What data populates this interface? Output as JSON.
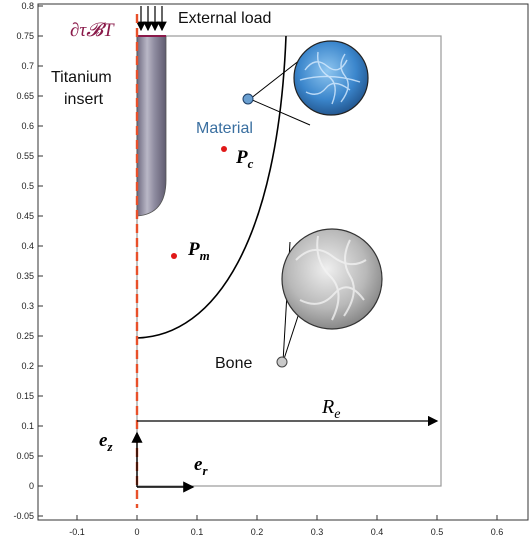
{
  "axes": {
    "x_ticks": [
      "-0.1",
      "0",
      "0.1",
      "0.2",
      "0.3",
      "0.4",
      "0.5",
      "0.6"
    ],
    "y_ticks": [
      "0.8",
      "0.75",
      "0.7",
      "0.65",
      "0.6",
      "0.55",
      "0.5",
      "0.45",
      "0.4",
      "0.35",
      "0.3",
      "0.25",
      "0.2",
      "0.15",
      "0.1",
      "0.05",
      "0",
      "-0.05"
    ]
  },
  "labels": {
    "external_load": "External load",
    "boundary_symbol": "∂τ𝓑T",
    "titanium_line1": "Titanium",
    "titanium_line2": "insert",
    "material": "Material",
    "bone": "Bone",
    "point_c": "P",
    "point_c_sub": "c",
    "point_m": "P",
    "point_m_sub": "m",
    "radius": "R",
    "radius_sub": "e",
    "ez": "e",
    "ez_sub": "z",
    "er": "e",
    "er_sub": "r"
  },
  "colors": {
    "boundary": "#e8502a",
    "points": "#e01818",
    "material": "#3a6fa0",
    "symbol": "#8a1a4a"
  }
}
